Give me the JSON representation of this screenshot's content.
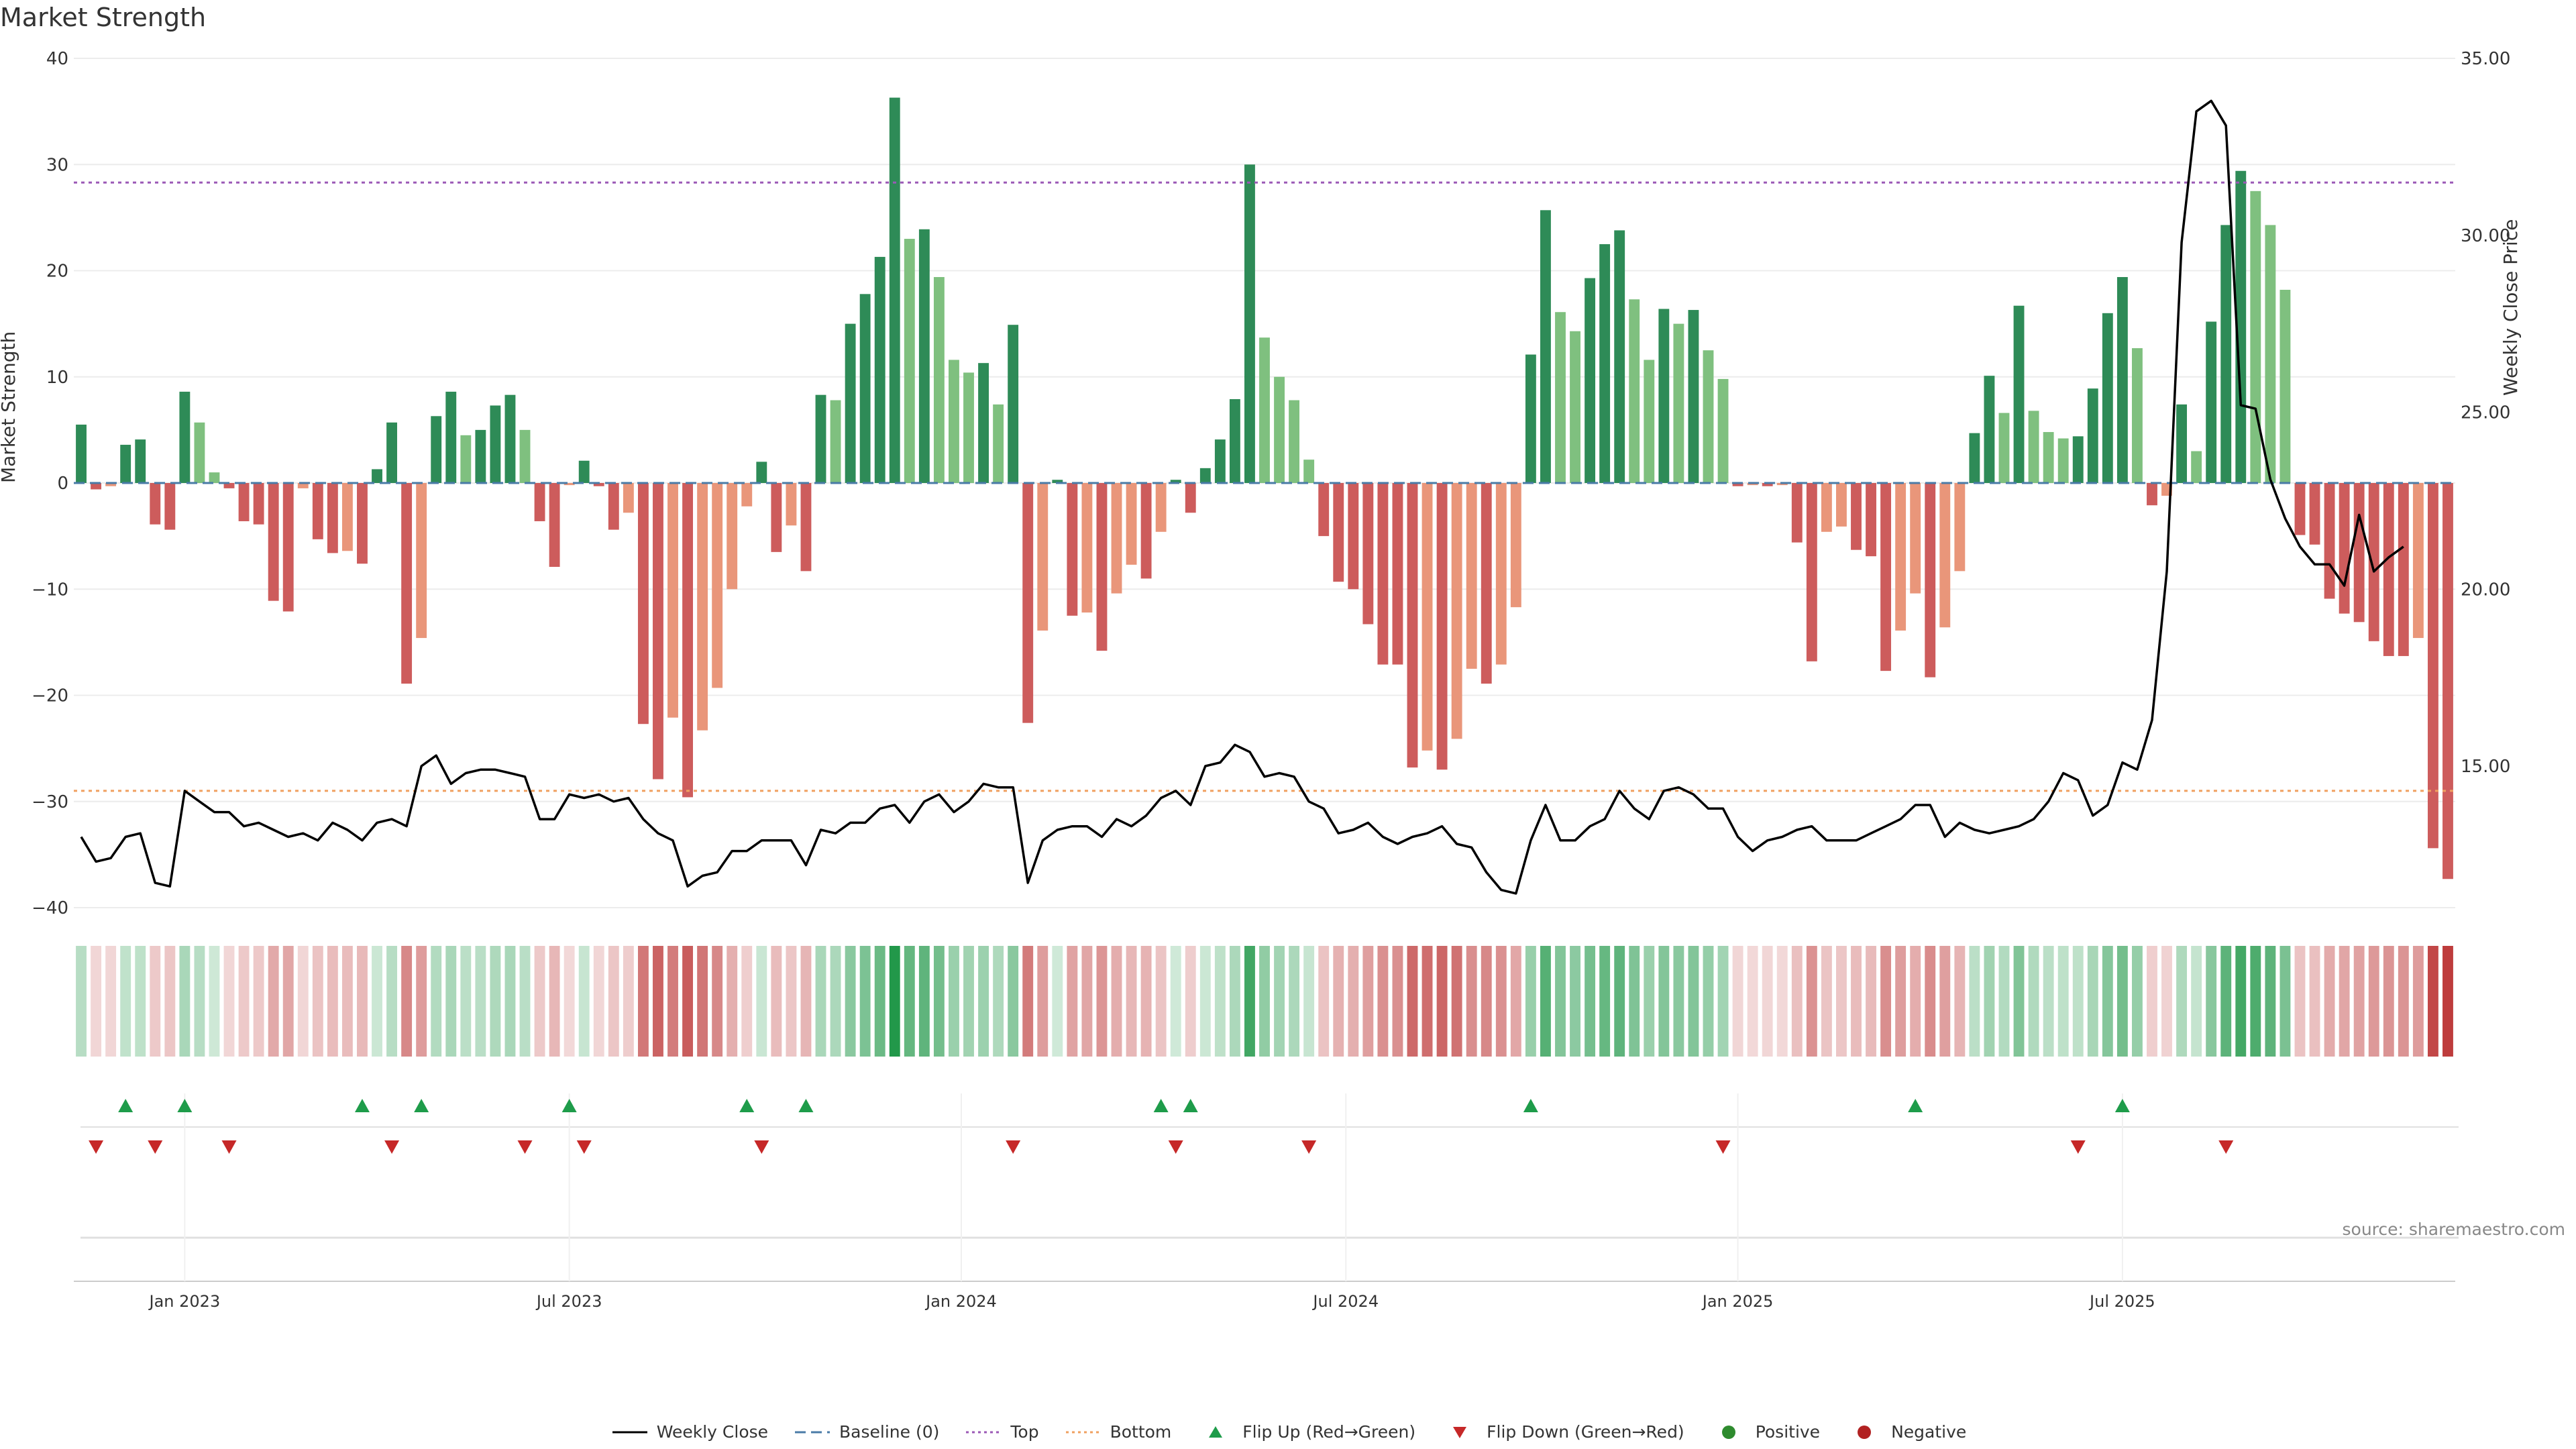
{
  "chart_data": {
    "type": "bar",
    "title": "Market Strength",
    "ylabel": "Market Strength",
    "ylabel_right": "Weekly Close Price",
    "ylim": [
      -40,
      40
    ],
    "y2lim": [
      11,
      35
    ],
    "yticks": [
      40,
      30,
      20,
      10,
      0,
      -10,
      -20,
      -30,
      -40
    ],
    "yticks_text": [
      "40",
      "30",
      "20",
      "10",
      "0",
      "−10",
      "−20",
      "−30",
      "−40"
    ],
    "y2ticks": [
      35,
      30,
      25,
      20,
      15
    ],
    "y2ticks_text": [
      "35.00",
      "30.00",
      "25.00",
      "20.00",
      "15.00"
    ],
    "xticks": [
      {
        "week": 7,
        "label": "Jan 2023"
      },
      {
        "week": 33,
        "label": "Jul 2023"
      },
      {
        "week": 59.5,
        "label": "Jan 2024"
      },
      {
        "week": 85.5,
        "label": "Jul 2024"
      },
      {
        "week": 112,
        "label": "Jan 2025"
      },
      {
        "week": 138,
        "label": "Jul 2025"
      }
    ],
    "top_level": 28.3,
    "bottom_level": -29.0,
    "strength": [
      5.5,
      -0.6,
      -0.3,
      3.6,
      4.1,
      -3.9,
      -4.4,
      8.6,
      5.7,
      1.0,
      -0.5,
      -3.6,
      -3.9,
      -11.1,
      -12.1,
      -0.5,
      -5.3,
      -6.6,
      -6.4,
      -7.6,
      1.3,
      5.7,
      -18.9,
      -14.6,
      6.3,
      8.6,
      4.5,
      5.0,
      7.3,
      8.3,
      5.0,
      -3.6,
      -7.9,
      -0.2,
      2.1,
      -0.3,
      -4.4,
      -2.8,
      -22.7,
      -27.9,
      -22.1,
      -29.6,
      -23.3,
      -19.3,
      -10.0,
      -2.2,
      2.0,
      -6.5,
      -4.0,
      -8.3,
      8.3,
      7.8,
      15.0,
      17.8,
      21.3,
      36.3,
      23.0,
      23.9,
      19.4,
      11.6,
      10.4,
      11.3,
      7.4,
      14.9,
      -22.6,
      -13.9,
      0.3,
      -12.5,
      -12.2,
      -15.8,
      -10.4,
      -7.7,
      -9.0,
      -4.6,
      0.3,
      -2.8,
      1.4,
      4.1,
      7.9,
      30.0,
      13.7,
      10.0,
      7.8,
      2.2,
      -5.0,
      -9.3,
      -10.0,
      -13.3,
      -17.1,
      -17.1,
      -26.8,
      -25.2,
      -27.0,
      -24.1,
      -17.5,
      -18.9,
      -17.1,
      -11.7,
      12.1,
      25.7,
      16.1,
      14.3,
      19.3,
      22.5,
      23.8,
      17.3,
      11.6,
      16.4,
      15.0,
      16.3,
      12.5,
      9.8,
      -0.3,
      -0.2,
      -0.3,
      -0.2,
      -5.6,
      -16.8,
      -4.6,
      -4.1,
      -6.3,
      -6.9,
      -17.7,
      -13.9,
      -10.4,
      -18.3,
      -13.6,
      -8.3,
      4.7,
      10.1,
      6.6,
      16.7,
      6.8,
      4.8,
      4.2,
      4.4,
      8.9,
      16.0,
      19.4,
      12.7,
      -2.1,
      -1.2,
      7.4,
      3.0,
      15.2,
      24.3,
      29.4,
      27.5,
      24.3,
      18.2,
      -4.9,
      -5.8,
      -10.9,
      -12.3,
      -13.1,
      -14.9,
      -16.3,
      -16.3,
      -14.6,
      -34.4,
      -37.3
    ],
    "weekly_close": [
      13.0,
      12.3,
      12.4,
      13.0,
      13.1,
      11.7,
      11.6,
      14.3,
      14.0,
      13.7,
      13.7,
      13.3,
      13.4,
      13.2,
      13.0,
      13.1,
      12.9,
      13.4,
      13.2,
      12.9,
      13.4,
      13.5,
      13.3,
      15.0,
      15.3,
      14.5,
      14.8,
      14.9,
      14.9,
      14.8,
      14.7,
      13.5,
      13.5,
      14.2,
      14.1,
      14.2,
      14.0,
      14.1,
      13.5,
      13.1,
      12.9,
      11.6,
      11.9,
      12.0,
      12.6,
      12.6,
      12.9,
      12.9,
      12.9,
      12.2,
      13.2,
      13.1,
      13.4,
      13.4,
      13.8,
      13.9,
      13.4,
      14.0,
      14.2,
      13.7,
      14.0,
      14.5,
      14.4,
      14.4,
      11.7,
      12.9,
      13.2,
      13.3,
      13.3,
      13.0,
      13.5,
      13.3,
      13.6,
      14.1,
      14.3,
      13.9,
      15.0,
      15.1,
      15.6,
      15.4,
      14.7,
      14.8,
      14.7,
      14.0,
      13.8,
      13.1,
      13.2,
      13.4,
      13.0,
      12.8,
      13.0,
      13.1,
      13.3,
      12.8,
      12.7,
      12.0,
      11.5,
      11.4,
      12.9,
      13.9,
      12.9,
      12.9,
      13.3,
      13.5,
      14.3,
      13.8,
      13.5,
      14.3,
      14.4,
      14.2,
      13.8,
      13.8,
      13.0,
      12.6,
      12.9,
      13.0,
      13.2,
      13.3,
      12.9,
      12.9,
      12.9,
      13.1,
      13.3,
      13.5,
      13.9,
      13.9,
      13.0,
      13.4,
      13.2,
      13.1,
      13.2,
      13.3,
      13.5,
      14.0,
      14.8,
      14.6,
      13.6,
      13.9,
      15.1,
      14.9,
      16.3,
      20.5,
      29.8,
      33.5,
      33.8,
      33.1,
      25.2,
      25.1,
      23.1,
      22.0,
      21.2,
      20.7,
      20.7,
      20.1,
      22.1,
      20.5,
      20.9,
      21.2
    ],
    "flips_up": [
      3,
      7,
      19,
      23,
      33,
      45,
      49,
      73,
      75,
      98,
      124,
      138
    ],
    "flips_down": [
      1,
      5,
      10,
      21,
      30,
      34,
      46,
      63,
      74,
      83,
      111,
      135,
      145
    ],
    "legend": [
      {
        "label": "Weekly Close",
        "symbol": "line",
        "color": "#000000"
      },
      {
        "label": "Baseline (0)",
        "symbol": "dash",
        "color": "#4a7ba7"
      },
      {
        "label": "Top",
        "symbol": "dot",
        "color": "#9b59b6"
      },
      {
        "label": "Bottom",
        "symbol": "dot",
        "color": "#f0a060"
      },
      {
        "label": "Flip Up (Red→Green)",
        "symbol": "tri-up",
        "color": "#1e9c4a"
      },
      {
        "label": "Flip Down (Green→Red)",
        "symbol": "tri-down",
        "color": "#c62828"
      },
      {
        "label": "Positive",
        "symbol": "circle",
        "color": "#2e8b2e"
      },
      {
        "label": "Negative",
        "symbol": "circle",
        "color": "#b22222"
      }
    ],
    "source": "source: sharemaestro.com"
  }
}
